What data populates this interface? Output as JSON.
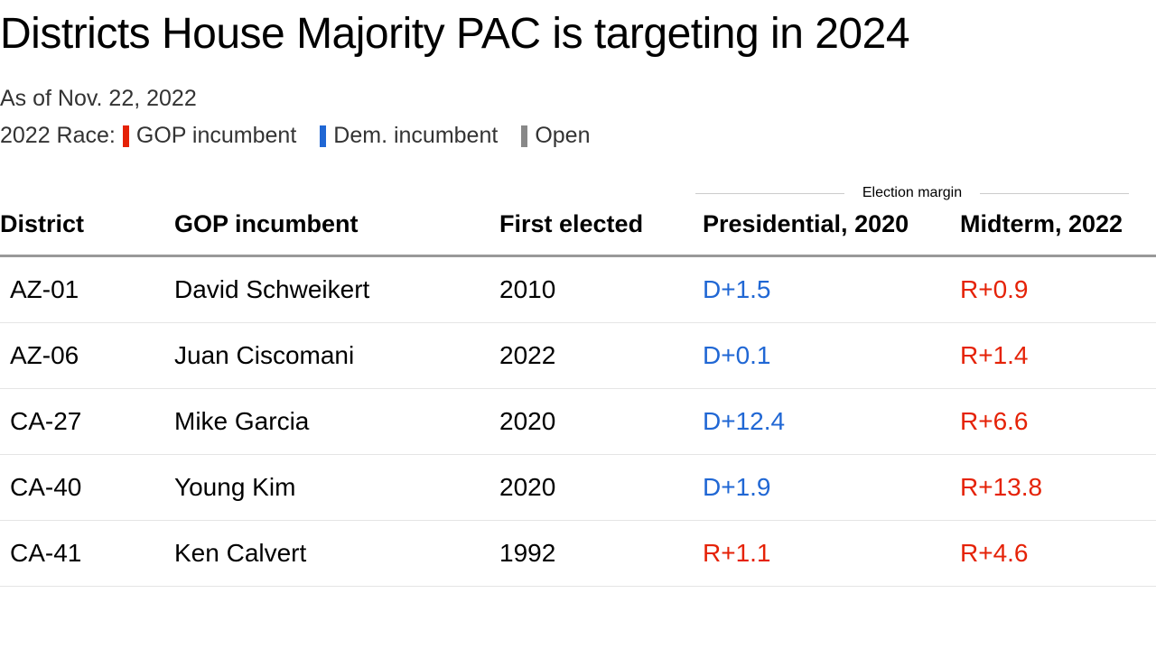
{
  "title": "Districts House Majority PAC is targeting in 2024",
  "subtitle": "As of Nov. 22, 2022",
  "legend": {
    "prefix": "2022 Race:",
    "items": [
      {
        "label": "GOP incumbent",
        "color": "#e52207"
      },
      {
        "label": "Dem. incumbent",
        "color": "#2067d4"
      },
      {
        "label": "Open",
        "color": "#888888"
      }
    ]
  },
  "margin_header": "Election margin",
  "columns": {
    "district": "District",
    "incumbent": "GOP incumbent",
    "first_elected": "First elected",
    "presidential": "Presidential, 2020",
    "midterm": "Midterm, 2022"
  },
  "colors": {
    "dem": "#2067d4",
    "gop": "#e52207",
    "open": "#888888",
    "text": "#000000",
    "border": "#999999",
    "row_border": "#e5e5e5"
  },
  "rows": [
    {
      "race_type": "gop",
      "district": "AZ-01",
      "incumbent": "David Schweikert",
      "first_elected": "2010",
      "presidential": {
        "text": "D+1.5",
        "party": "dem"
      },
      "midterm": {
        "text": "R+0.9",
        "party": "gop"
      }
    },
    {
      "race_type": "open",
      "district": "AZ-06",
      "incumbent": "Juan Ciscomani",
      "first_elected": "2022",
      "presidential": {
        "text": "D+0.1",
        "party": "dem"
      },
      "midterm": {
        "text": "R+1.4",
        "party": "gop"
      }
    },
    {
      "race_type": "gop",
      "district": "CA-27",
      "incumbent": "Mike Garcia",
      "first_elected": "2020",
      "presidential": {
        "text": "D+12.4",
        "party": "dem"
      },
      "midterm": {
        "text": "R+6.6",
        "party": "gop"
      }
    },
    {
      "race_type": "gop",
      "district": "CA-40",
      "incumbent": "Young Kim",
      "first_elected": "2020",
      "presidential": {
        "text": "D+1.9",
        "party": "dem"
      },
      "midterm": {
        "text": "R+13.8",
        "party": "gop"
      }
    },
    {
      "race_type": "gop",
      "district": "CA-41",
      "incumbent": "Ken Calvert",
      "first_elected": "1992",
      "presidential": {
        "text": "R+1.1",
        "party": "gop"
      },
      "midterm": {
        "text": "R+4.6",
        "party": "gop"
      }
    }
  ]
}
